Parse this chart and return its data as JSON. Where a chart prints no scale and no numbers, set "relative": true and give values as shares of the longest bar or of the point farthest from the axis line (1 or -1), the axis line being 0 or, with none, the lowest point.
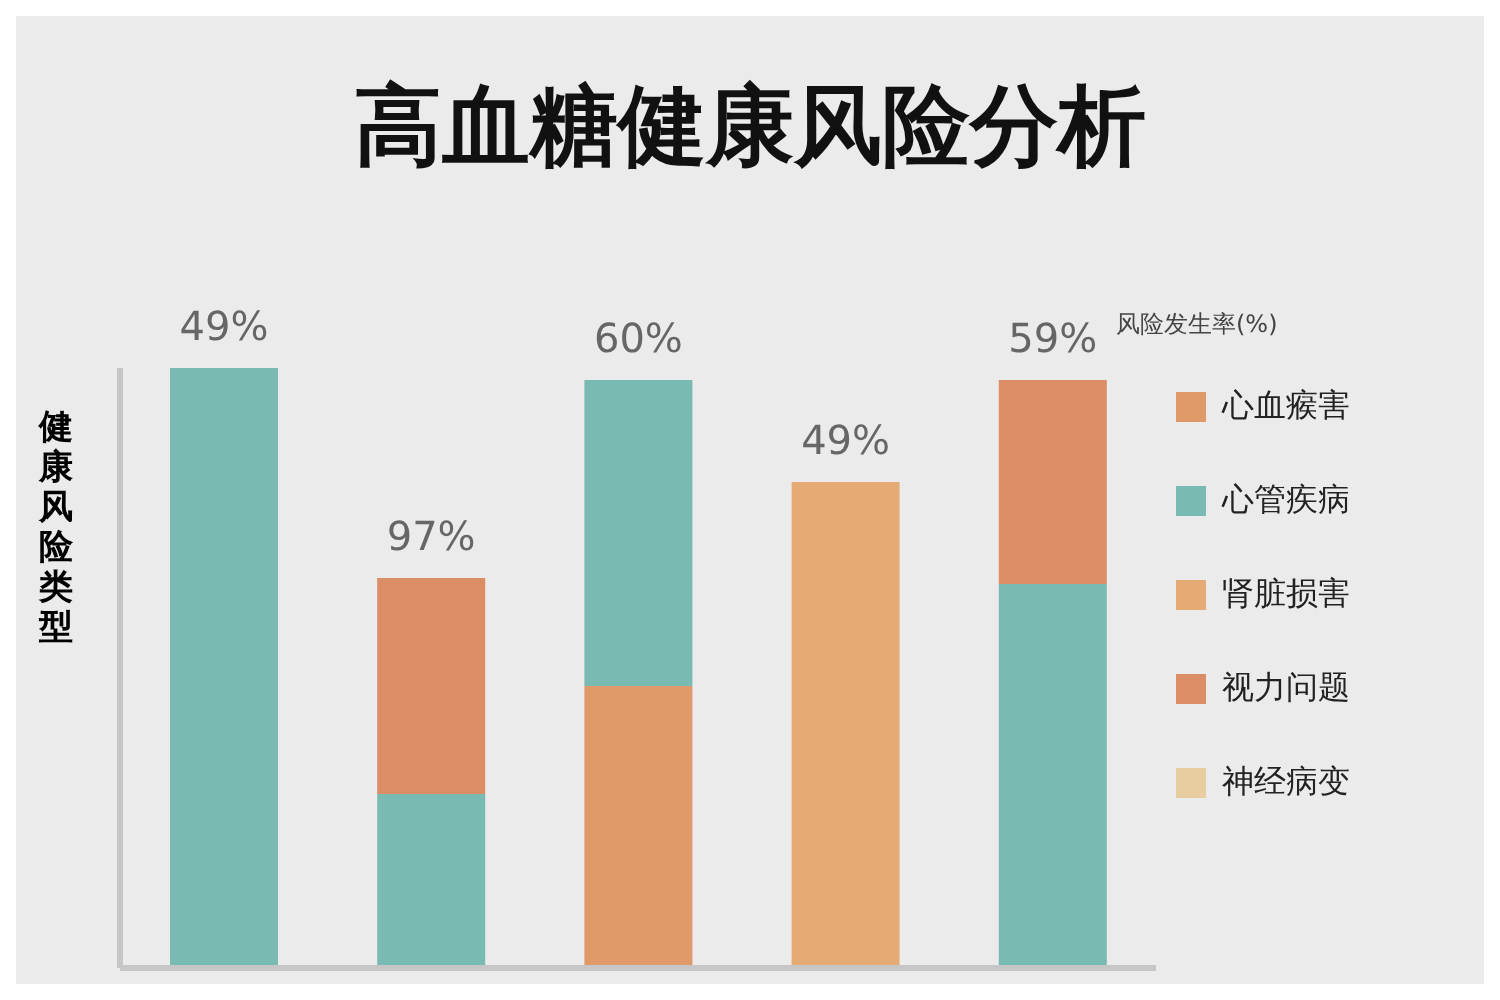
{
  "chart_data": {
    "type": "bar",
    "title": "高血糖健康风险分析",
    "ylabel": "健康风险类型",
    "legend_title": "风险发生率(%)",
    "categories": [
      null,
      null,
      null,
      null,
      null
    ],
    "relative": true,
    "stacked": true,
    "legend": "right",
    "grid": false,
    "series": [
      {
        "name": "心血瘊害",
        "color": "#e09a69",
        "values": [
          null,
          null,
          0.47,
          null,
          null
        ]
      },
      {
        "name": "心管疾病",
        "color": "#79bbb3",
        "values": [
          1.0,
          0.29,
          0.51,
          null,
          0.64
        ]
      },
      {
        "name": "肾脏损害",
        "color": "#e6ab75",
        "values": [
          null,
          null,
          null,
          0.81,
          null
        ]
      },
      {
        "name": "视力问题",
        "color": "#db8d66",
        "values": [
          null,
          0.36,
          null,
          null,
          0.34
        ]
      },
      {
        "name": "神经病变",
        "color": "#e8cda0",
        "values": [
          null,
          null,
          null,
          null,
          null
        ]
      }
    ],
    "annotations": [
      "49%",
      "97%",
      "60%",
      "49%",
      "59%"
    ]
  }
}
